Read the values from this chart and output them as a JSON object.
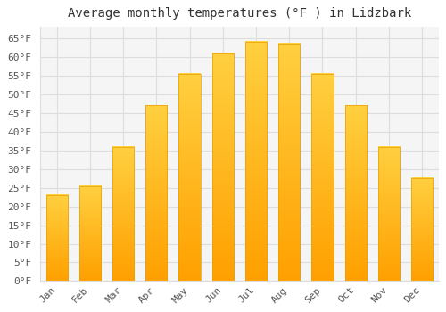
{
  "title": "Average monthly temperatures (°F ) in Lidzbark",
  "months": [
    "Jan",
    "Feb",
    "Mar",
    "Apr",
    "May",
    "Jun",
    "Jul",
    "Aug",
    "Sep",
    "Oct",
    "Nov",
    "Dec"
  ],
  "values": [
    23,
    25.5,
    36,
    47,
    55.5,
    61,
    64,
    63.5,
    55.5,
    47,
    36,
    27.5
  ],
  "bar_color_top": "#FFD040",
  "bar_color_bottom": "#FFA000",
  "bar_edge_color": "#E8A000",
  "background_color": "#FFFFFF",
  "plot_bg_color": "#F5F5F5",
  "grid_color": "#DDDDDD",
  "title_fontsize": 10,
  "tick_fontsize": 8,
  "label_color": "#555555",
  "ylim": [
    0,
    68
  ],
  "yticks": [
    0,
    5,
    10,
    15,
    20,
    25,
    30,
    35,
    40,
    45,
    50,
    55,
    60,
    65
  ]
}
